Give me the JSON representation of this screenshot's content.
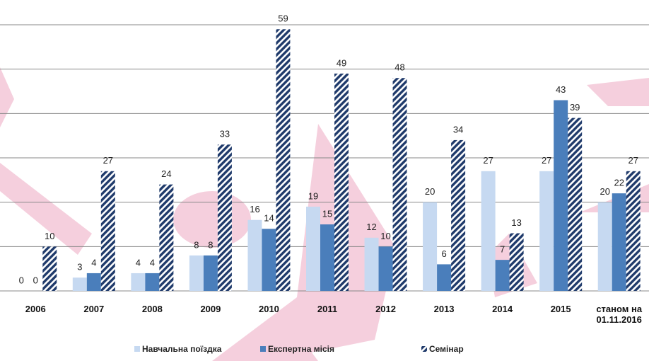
{
  "chart_data": {
    "type": "bar",
    "categories": [
      "2006",
      "2007",
      "2008",
      "2009",
      "2010",
      "2011",
      "2012",
      "2013",
      "2014",
      "2015",
      "станом на 01.11.2016"
    ],
    "series": [
      {
        "name": "Навчальна поїздка",
        "color": "#c6d9f1",
        "values": [
          0,
          3,
          4,
          8,
          16,
          19,
          12,
          20,
          27,
          27,
          20
        ]
      },
      {
        "name": "Експертна місія",
        "color": "#4a7ebb",
        "values": [
          0,
          4,
          4,
          8,
          14,
          15,
          10,
          6,
          7,
          43,
          22
        ]
      },
      {
        "name": "Семінар",
        "color": "#1f3a6b",
        "values": [
          10,
          27,
          24,
          33,
          59,
          49,
          48,
          34,
          13,
          39,
          27
        ]
      }
    ],
    "ylim": [
      0,
      60
    ],
    "yticks": [
      0,
      10,
      20,
      30,
      40,
      50,
      60
    ],
    "grid": true
  }
}
